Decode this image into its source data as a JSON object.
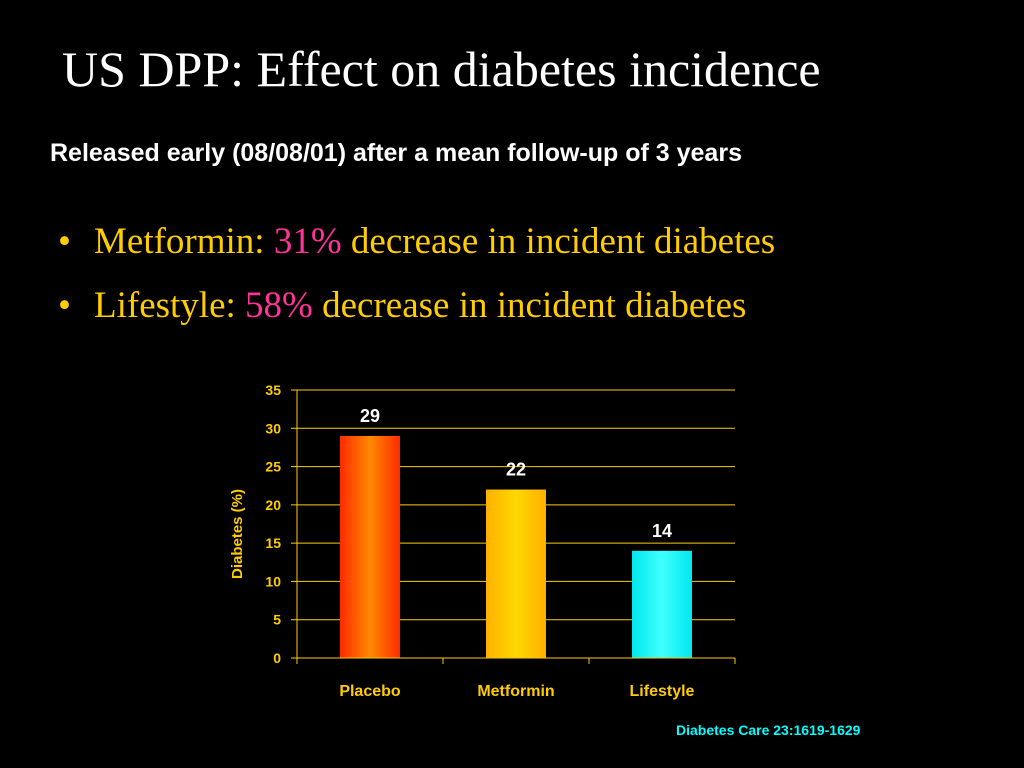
{
  "slide": {
    "title": "US DPP: Effect on diabetes incidence",
    "subtitle": "Released early (08/08/01) after a mean follow-up of 3 years",
    "bullets": [
      {
        "bullet": "•",
        "label": "Metformin:",
        "percent": "31%",
        "text": "decrease in incident diabetes"
      },
      {
        "bullet": "•",
        "label": "Lifestyle:",
        "percent": "58%",
        "text": "decrease in incident diabetes"
      }
    ],
    "citation": "Diabetes Care 23:1619-1629"
  },
  "chart_data": {
    "type": "bar",
    "categories": [
      "Placebo",
      "Metformin",
      "Lifestyle"
    ],
    "values": [
      29,
      22,
      14
    ],
    "data_labels": [
      "29",
      "22",
      "14"
    ],
    "ylabel": "Diabetes (%)",
    "xlabel": "",
    "ylim": [
      0,
      35
    ],
    "yticks": [
      0,
      5,
      10,
      15,
      20,
      25,
      30,
      35
    ],
    "grid": true,
    "legend": "none",
    "bar_colors": [
      {
        "edge": "#ff2a00",
        "center": "#ff8a00"
      },
      {
        "edge": "#ffb000",
        "center": "#ffd800"
      },
      {
        "edge": "#00e8ee",
        "center": "#40ffff"
      }
    ],
    "text_color": "#ffcc00",
    "grid_color": "#ffcc00",
    "label_color": "#ffffff"
  }
}
